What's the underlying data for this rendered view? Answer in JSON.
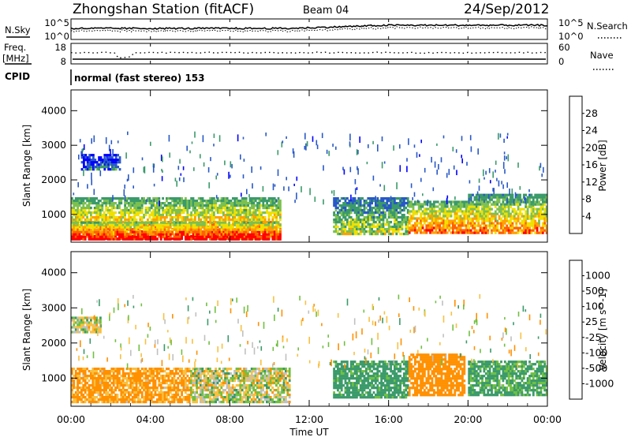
{
  "header": {
    "title": "Zhongshan Station (fitACF)",
    "beam": "Beam 04",
    "date": "24/Sep/2012"
  },
  "status": {
    "nsky_label": "N.Sky",
    "nsearch_label": "N.Search",
    "nsky_ticks": [
      "10^5",
      "10^0"
    ],
    "nsearch_ticks": [
      "10^5",
      "10^0"
    ],
    "freq_label": "Freq.",
    "freq_unit": "[MHz]",
    "freq_ticks": [
      "18",
      "8"
    ],
    "nave_label": "Nave",
    "nave_ticks": [
      "60",
      "0"
    ],
    "cpid_label": "CPID",
    "cpid_text": "normal (fast stereo) 153"
  },
  "colors": {
    "power_scale": [
      "#0000ff",
      "#2858c8",
      "#3a9a6a",
      "#7cc050",
      "#f0e000",
      "#ffa000",
      "#ff6000",
      "#ff0000"
    ],
    "velocity_scale": [
      "#ff0000",
      "#ff5a00",
      "#ff9000",
      "#f8c040",
      "#c0c0c0",
      "#70c040",
      "#3a9a6a",
      "#2858c8",
      "#1830b0"
    ]
  },
  "chart_data": [
    {
      "type": "heatmap",
      "name": "power",
      "ylabel": "Slant Range [km]",
      "yticks": [
        1000,
        2000,
        3000,
        4000
      ],
      "colorbar_label": "Power [dB]",
      "colorbar_ticks": [
        "4",
        "8",
        "12",
        "16",
        "20",
        "24",
        "28"
      ],
      "colorbar_range": [
        0,
        30
      ],
      "ylim": [
        200,
        4600
      ],
      "xlim": [
        "00:00",
        "24:00"
      ],
      "grid": false,
      "echo_regions": [
        {
          "t_start": 0.0,
          "t_end": 10.5,
          "range_low": 300,
          "range_high": 1500,
          "power": 22
        },
        {
          "t_start": 0.0,
          "t_end": 10.5,
          "range_low": 300,
          "range_high": 800,
          "power": 28
        },
        {
          "t_start": 0.5,
          "t_end": 2.5,
          "range_low": 2300,
          "range_high": 2750,
          "power": 6
        },
        {
          "t_start": 13.2,
          "t_end": 17.0,
          "range_low": 450,
          "range_high": 1500,
          "power": 14
        },
        {
          "t_start": 17.0,
          "t_end": 20.0,
          "range_low": 500,
          "range_high": 1400,
          "power": 22
        },
        {
          "t_start": 20.0,
          "t_end": 24.0,
          "range_low": 500,
          "range_high": 1600,
          "power": 20
        }
      ]
    },
    {
      "type": "heatmap",
      "name": "velocity",
      "ylabel": "Slant Range [km]",
      "yticks": [
        1000,
        2000,
        3000,
        4000
      ],
      "xlabel": "Time UT",
      "xticks": [
        "00:00",
        "04:00",
        "08:00",
        "12:00",
        "16:00",
        "20:00",
        "00:00"
      ],
      "colorbar_label": "Velocity [m s^-1]",
      "colorbar_ticks": [
        "1000",
        "500",
        "100",
        "25",
        "-25",
        "-100",
        "-500",
        "-1000"
      ],
      "ylim": [
        200,
        4600
      ],
      "xlim": [
        "00:00",
        "24:00"
      ],
      "grid": false,
      "echo_regions": [
        {
          "t_start": 0.0,
          "t_end": 1.5,
          "range_low": 2300,
          "range_high": 2750,
          "velocity": 0
        },
        {
          "t_start": 0.0,
          "t_end": 6.0,
          "range_low": 300,
          "range_high": 1300,
          "velocity": -150
        },
        {
          "t_start": 6.0,
          "t_end": 11.0,
          "range_low": 300,
          "range_high": 1300,
          "velocity": 0
        },
        {
          "t_start": 13.2,
          "t_end": 17.0,
          "range_low": 450,
          "range_high": 1500,
          "velocity": 200
        },
        {
          "t_start": 17.0,
          "t_end": 19.8,
          "range_low": 500,
          "range_high": 1700,
          "velocity": -300
        },
        {
          "t_start": 20.0,
          "t_end": 24.0,
          "range_low": 500,
          "range_high": 1500,
          "velocity": 150
        }
      ]
    }
  ]
}
